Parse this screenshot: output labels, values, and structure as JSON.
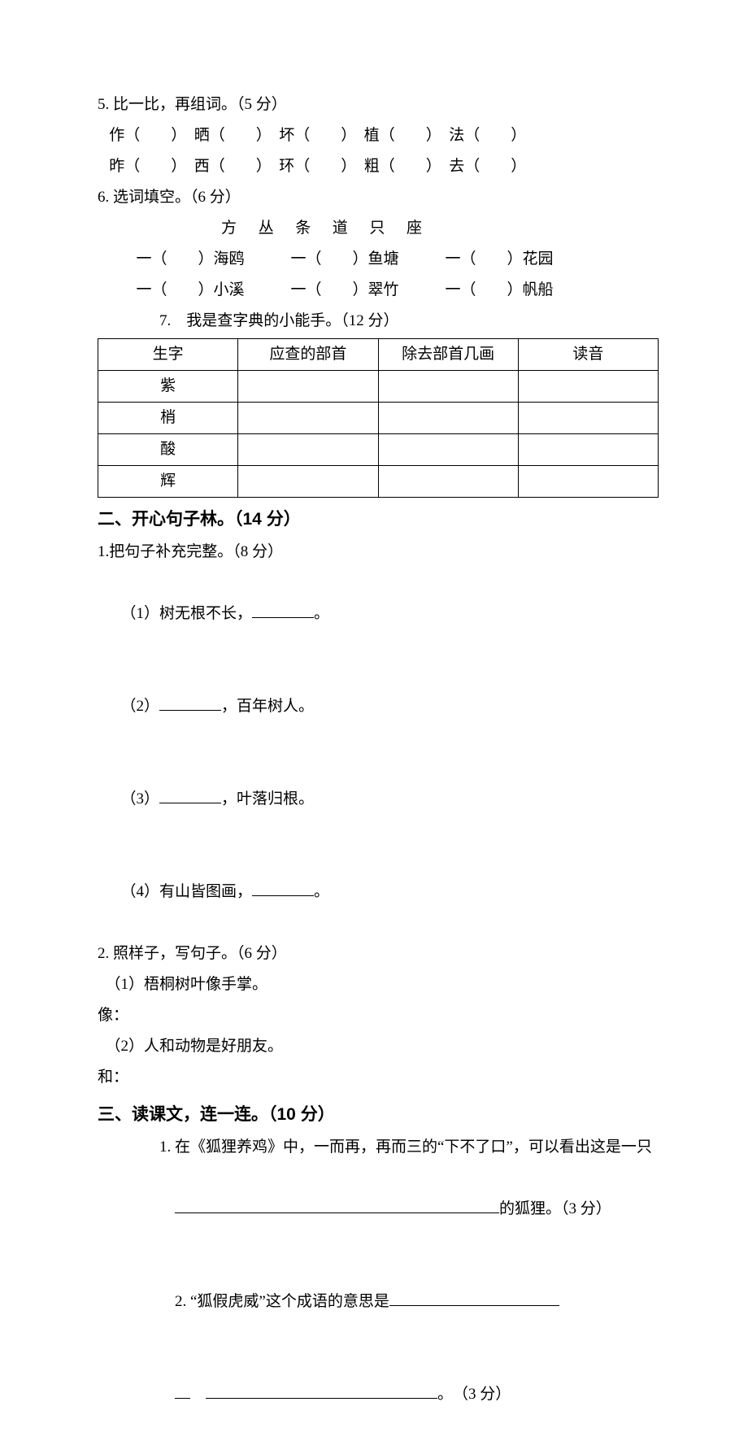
{
  "q5": {
    "title": "5. 比一比，再组词。（5 分）",
    "row1": " 作（　　）　晒（　　）　坏（　　）　植（　　）　法（　　）",
    "row2": " 昨（　　）　西（　　）　环（　　）　粗（　　）　去（　　）"
  },
  "q6": {
    "title": "6. 选词填空。（6 分）",
    "wordbank": "方　丛　条　道　只　座",
    "line1": "一（　　）海鸥　　　一（　　）鱼塘　　　一（　　）花园",
    "line2": "一（　　）小溪　　　一（　　）翠竹　　　一（　　）帆船"
  },
  "q7": {
    "title": "7.　我是查字典的小能手。（12 分）",
    "table": {
      "headers": [
        "生字",
        "应查的部首",
        "除去部首几画",
        "读音"
      ],
      "rows": [
        "紫",
        "梢",
        "酸",
        "辉"
      ]
    }
  },
  "sec2": {
    "heading": "二、开心句子林。（14 分）",
    "q1": {
      "title": "1.把句子补充完整。（8 分）",
      "items": [
        {
          "pre": "（1）树无根不长，",
          "post": "。"
        },
        {
          "pre": "（2）",
          "post": "，百年树人。"
        },
        {
          "pre": "（3）",
          "post": "，叶落归根。"
        },
        {
          "pre": "（4）有山皆图画，",
          "post": "。"
        }
      ]
    },
    "q2": {
      "title": "2. 照样子，写句子。（6 分）",
      "ex1": "（1）梧桐树叶像手掌。",
      "ex1_prompt": "像：",
      "ex2": "（2）人和动物是好朋友。",
      "ex2_prompt": "和："
    }
  },
  "sec3": {
    "heading": "三、读课文，连一连。（10 分）",
    "q1_a": "1. 在《狐狸养鸡》中，一而再，再而三的“下不了口”，可以看出这是一只",
    "q1_b_post": "的狐狸。（3 分）",
    "q2_a": "2. “狐假虎威”这个成语的意思是",
    "q2_b_post": "。　（3 分）"
  }
}
